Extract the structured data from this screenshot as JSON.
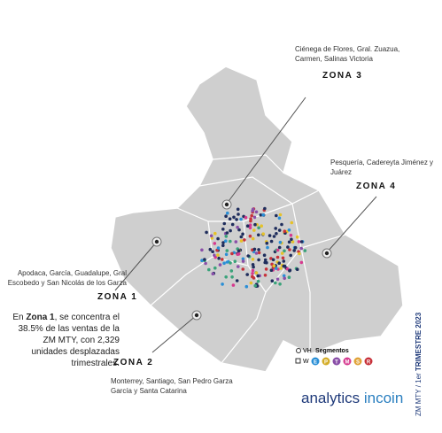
{
  "zones": {
    "zona3": {
      "title": "ZONA 3",
      "description": "Ciénega de Flores, Gral. Zuazua, Carmen, Salinas Victoria"
    },
    "zona4": {
      "title": "ZONA 4",
      "description": "Pesquería, Cadereyta Jiménez y Juárez"
    },
    "zona1": {
      "title": "ZONA 1",
      "description": "Apodaca, García, Guadalupe, Gral Escobedo y San Nicolás de los Garza"
    },
    "zona2": {
      "title": "ZONA 2",
      "description": "Monterrey, Santiago, San Pedro Garza García y Santa Catarina"
    }
  },
  "highlight": {
    "prefix": "En",
    "zone": "Zona 1",
    "text": ", se concentra el 38.5% de las ventas de la ZM MTY, con 2,329 unidades desplazadas trimestrales."
  },
  "legend": {
    "vh": "VH",
    "title": "Segmentos",
    "w": "W",
    "segments": [
      {
        "label": "E",
        "color": "#2a8fd6"
      },
      {
        "label": "P",
        "color": "#d4ad2a"
      },
      {
        "label": "T",
        "color": "#8a4fa8"
      },
      {
        "label": "M",
        "color": "#d63a8f"
      },
      {
        "label": "S",
        "color": "#e0a33a"
      },
      {
        "label": "R",
        "color": "#c7323a"
      }
    ]
  },
  "side": {
    "prefix": "ZM MTY / 1er ",
    "bold": "TRIMESTRE 2023"
  },
  "logo": {
    "part1": "analytics",
    "part2": "incoin"
  }
}
